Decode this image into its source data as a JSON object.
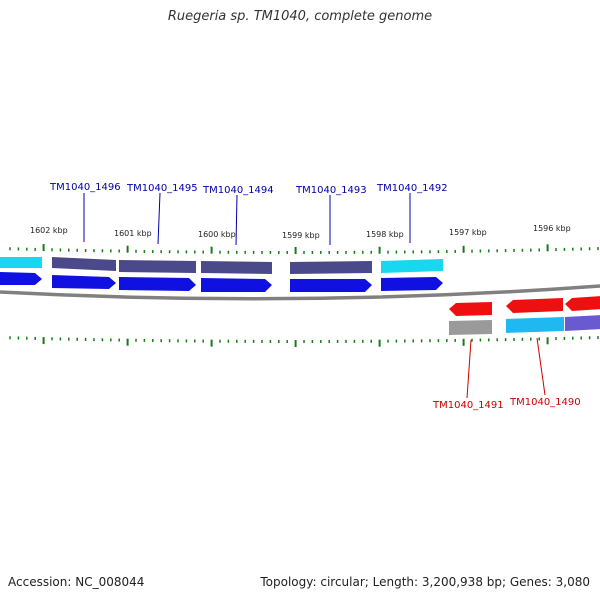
{
  "title": "Ruegeria sp. TM1040, complete genome",
  "footer": {
    "accession": "Accession: NC_008044",
    "summary": "Topology: circular; Length: 3,200,938 bp; Genes: 3,080"
  },
  "ticks_kbp": [
    "1602 kbp",
    "1601 kbp",
    "1600 kbp",
    "1599 kbp",
    "1598 kbp",
    "1597 kbp",
    "1596 kbp"
  ],
  "genes": {
    "forward_labels": [
      "TM1040_1496",
      "TM1040_1495",
      "TM1040_1494",
      "TM1040_1493",
      "TM1040_1492"
    ],
    "reverse_labels": [
      "TM1040_1491",
      "TM1040_1490"
    ]
  },
  "colors": {
    "cds_forward": "#1010e0",
    "cds_reverse": "#ee1010",
    "cog_dark": "#4a4a8a",
    "cog_cyan": "#18d8f0",
    "cog_light_blue": "#20b8f0",
    "cog_purple": "#6a5ad0",
    "cog_gray": "#9a9a9a",
    "tick": "#1a7a1a",
    "label_forward": "#0000aa",
    "label_reverse": "#cc0000",
    "backbone": "#808080"
  }
}
